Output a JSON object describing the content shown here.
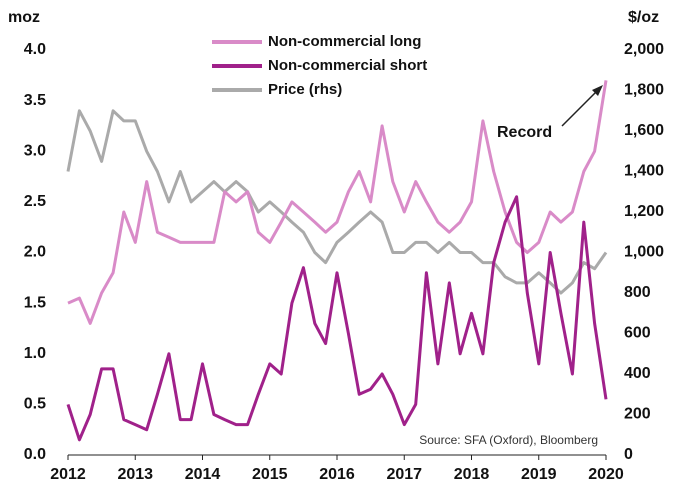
{
  "chart_data": {
    "type": "line",
    "y_label": "moz",
    "y2_label": "$/oz",
    "annotation": "Record",
    "source": "Source: SFA (Oxford), Bloomberg",
    "legend": "top",
    "x": [
      2012.0,
      2012.17,
      2012.33,
      2012.5,
      2012.67,
      2012.83,
      2013.0,
      2013.17,
      2013.33,
      2013.5,
      2013.67,
      2013.83,
      2014.0,
      2014.17,
      2014.33,
      2014.5,
      2014.67,
      2014.83,
      2015.0,
      2015.17,
      2015.33,
      2015.5,
      2015.67,
      2015.83,
      2016.0,
      2016.17,
      2016.33,
      2016.5,
      2016.67,
      2016.83,
      2017.0,
      2017.17,
      2017.33,
      2017.5,
      2017.67,
      2017.83,
      2018.0,
      2018.17,
      2018.33,
      2018.5,
      2018.67,
      2018.83,
      2019.0,
      2019.17,
      2019.33,
      2019.5,
      2019.67,
      2019.83,
      2020.0
    ],
    "series": [
      {
        "name": "Non-commercial long",
        "color": "#d98bc8",
        "values": [
          1.5,
          1.55,
          1.3,
          1.6,
          1.8,
          2.4,
          2.1,
          2.7,
          2.2,
          2.15,
          2.1,
          2.1,
          2.1,
          2.1,
          2.6,
          2.5,
          2.6,
          2.2,
          2.1,
          2.3,
          2.5,
          2.4,
          2.3,
          2.2,
          2.3,
          2.6,
          2.8,
          2.5,
          3.25,
          2.7,
          2.4,
          2.7,
          2.5,
          2.3,
          2.2,
          2.3,
          2.5,
          3.3,
          2.8,
          2.4,
          2.1,
          2.0,
          2.1,
          2.4,
          2.3,
          2.4,
          2.8,
          3.0,
          3.7
        ]
      },
      {
        "name": "Non-commercial short",
        "color": "#a0218a",
        "values": [
          0.5,
          0.15,
          0.4,
          0.85,
          0.85,
          0.35,
          0.3,
          0.25,
          0.6,
          1.0,
          0.35,
          0.35,
          0.9,
          0.4,
          0.35,
          0.3,
          0.3,
          0.6,
          0.9,
          0.8,
          1.5,
          1.85,
          1.3,
          1.1,
          1.8,
          1.2,
          0.6,
          0.65,
          0.8,
          0.6,
          0.3,
          0.5,
          1.8,
          0.9,
          1.7,
          1.0,
          1.4,
          1.0,
          1.9,
          2.3,
          2.55,
          1.6,
          0.9,
          2.0,
          1.4,
          0.8,
          2.3,
          1.3,
          0.55
        ]
      },
      {
        "name": "Price (rhs)",
        "color": "#aaaaaa",
        "axis": "y2",
        "values": [
          1400,
          1700,
          1600,
          1450,
          1700,
          1650,
          1650,
          1500,
          1400,
          1250,
          1400,
          1250,
          1300,
          1350,
          1300,
          1350,
          1300,
          1200,
          1250,
          1200,
          1150,
          1100,
          1000,
          950,
          1050,
          1100,
          1150,
          1200,
          1150,
          1000,
          1000,
          1050,
          1050,
          1000,
          1050,
          1000,
          1000,
          950,
          950,
          880,
          850,
          850,
          900,
          850,
          800,
          850,
          950,
          920,
          1000
        ]
      }
    ],
    "xlim": [
      2012,
      2020
    ],
    "xticks": [
      2012,
      2013,
      2014,
      2015,
      2016,
      2017,
      2018,
      2019,
      2020
    ],
    "ylim": [
      0,
      4
    ],
    "yticks": [
      {
        "value": 0,
        "label": "0.0"
      },
      0.5,
      {
        "value": 1,
        "label": "1.0"
      },
      1.5,
      {
        "value": 2,
        "label": "2.0"
      },
      2.5,
      {
        "value": 3,
        "label": "3.0"
      },
      3.5,
      {
        "value": 4,
        "label": "4.0"
      }
    ],
    "y2lim": [
      0,
      2000
    ],
    "y2ticks": [
      0,
      200,
      400,
      600,
      800,
      {
        "value": 1000,
        "label": "1,000"
      },
      {
        "value": 1200,
        "label": "1,200"
      },
      {
        "value": 1400,
        "label": "1,400"
      },
      {
        "value": 1600,
        "label": "1,600"
      },
      {
        "value": 1800,
        "label": "1,800"
      },
      {
        "value": 2000,
        "label": "2,000"
      }
    ]
  }
}
